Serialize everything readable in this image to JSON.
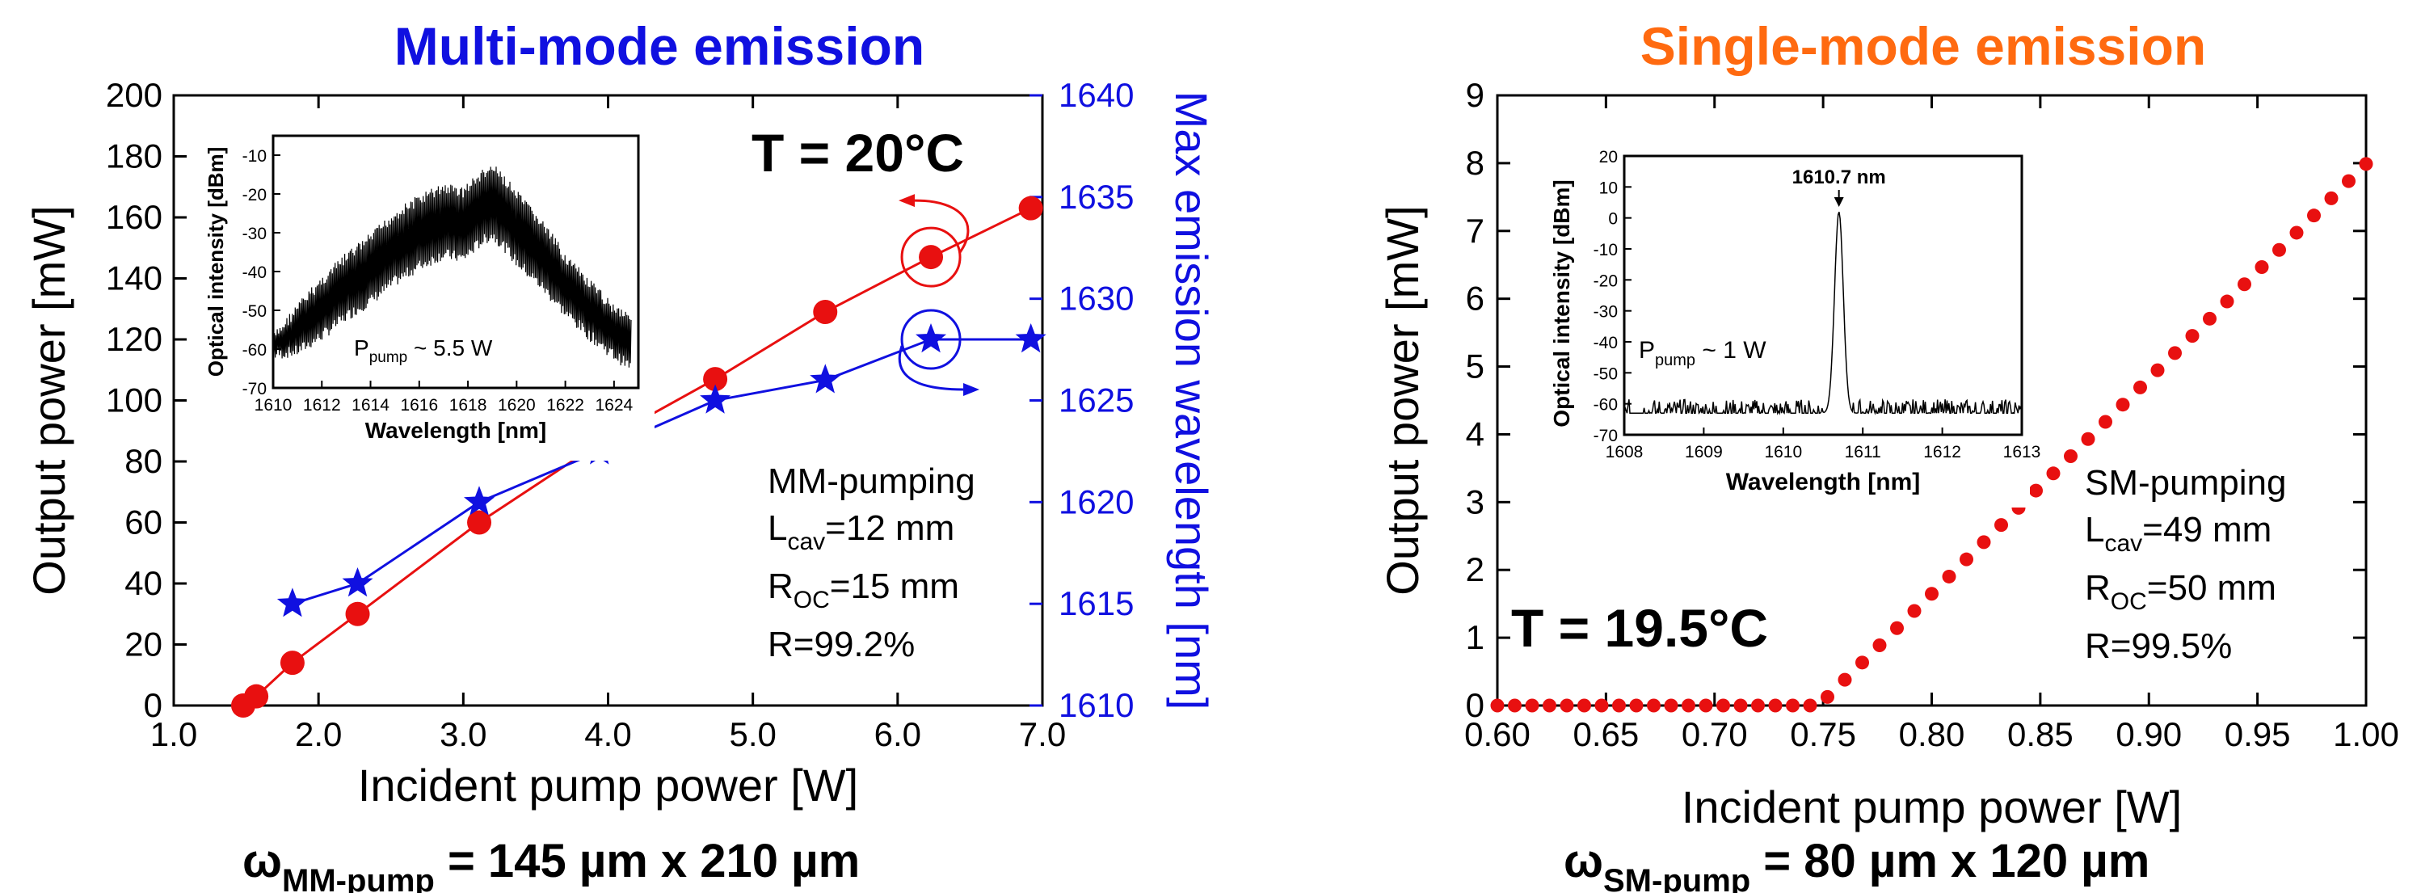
{
  "panels": {
    "left": {
      "heading": "Multi-mode emission",
      "heading_color": "#1010e0",
      "temperature": "T = 20°C",
      "params": {
        "pumping": "MM-pumping",
        "lcav_base": "L",
        "lcav_sub": "cav",
        "lcav_val": "=12 mm",
        "roc_base": "R",
        "roc_sub": "OC",
        "roc_val": "=15 mm",
        "refl": "R=99.2%"
      },
      "footer": {
        "base": "ω",
        "sub": "MM-pump",
        "rest": " = 145 µm x 210 µm"
      }
    },
    "right": {
      "heading": "Single-mode emission",
      "heading_color": "#ff6a10",
      "temperature": "T = 19.5°C",
      "params": {
        "pumping": "SM-pumping",
        "lcav_base": "L",
        "lcav_sub": "cav",
        "lcav_val": "=49 mm",
        "roc_base": "R",
        "roc_sub": "OC",
        "roc_val": "=50 mm",
        "refl": "R=99.5%"
      },
      "footer": {
        "base": "ω",
        "sub": "SM-pump",
        "rest": " = 80 µm x 120 µm"
      }
    }
  },
  "chart_data": [
    {
      "type": "line",
      "xlabel": "Incident pump power [W]",
      "ylabel": "Output power [mW]",
      "y2label": "Max emission wavelength [nm]",
      "xlim": [
        1.0,
        7.0
      ],
      "ylim": [
        0,
        200
      ],
      "y2lim": [
        1610,
        1640
      ],
      "xticks": [
        "1.0",
        "2.0",
        "3.0",
        "4.0",
        "5.0",
        "6.0",
        "7.0"
      ],
      "yticks": [
        "0",
        "20",
        "40",
        "60",
        "80",
        "100",
        "120",
        "140",
        "160",
        "180",
        "200"
      ],
      "y2ticks": [
        "1610",
        "1615",
        "1620",
        "1625",
        "1630",
        "1635",
        "1640"
      ],
      "series": [
        {
          "color": "#e81010",
          "marker": "circle",
          "axis": "left",
          "x": [
            1.48,
            1.57,
            1.82,
            2.27,
            3.11,
            3.94,
            4.74,
            5.5,
            6.23,
            6.92
          ],
          "y": [
            0,
            3,
            14,
            30,
            60,
            86,
            107,
            129,
            147,
            163
          ]
        },
        {
          "color": "#1010e0",
          "marker": "star",
          "axis": "right",
          "x": [
            1.82,
            2.27,
            3.11,
            3.94,
            4.74,
            5.5,
            6.23,
            6.92
          ],
          "y": [
            1615,
            1616,
            1620,
            1622.5,
            1625,
            1626,
            1628,
            1628
          ]
        }
      ],
      "inset": {
        "type": "line",
        "xlabel": "Wavelength [nm]",
        "ylabel": "Optical intensity [dBm]",
        "xlim": [
          1610,
          1625
        ],
        "ylim": [
          -70,
          -5
        ],
        "xticks": [
          "1610",
          "1612",
          "1614",
          "1616",
          "1618",
          "1620",
          "1622",
          "1624"
        ],
        "yticks": [
          "-70",
          "-60",
          "-50",
          "-40",
          "-30",
          "-20",
          "-10"
        ],
        "annotation": {
          "base": "P",
          "sub": "pump",
          "rest": " ~ 5.5 W"
        },
        "envelope": {
          "x": [
            1610.0,
            1611.0,
            1612.0,
            1613.0,
            1614.0,
            1615.0,
            1616.0,
            1617.0,
            1617.8,
            1618.5,
            1619.0,
            1619.5,
            1620.0,
            1621.0,
            1622.0,
            1623.0,
            1624.0,
            1624.7
          ],
          "upper": [
            -56,
            -48,
            -41,
            -35,
            -30,
            -24,
            -20,
            -17,
            -18,
            -14,
            -12,
            -15,
            -19,
            -26,
            -35,
            -42,
            -48,
            -50
          ],
          "lower": [
            -63,
            -62,
            -58,
            -53,
            -49,
            -44,
            -40,
            -37,
            -38,
            -34,
            -32,
            -35,
            -39,
            -45,
            -52,
            -58,
            -63,
            -66
          ]
        }
      }
    },
    {
      "type": "scatter",
      "xlabel": "Incident pump power [W]",
      "ylabel": "Output power [mW]",
      "xlim": [
        0.6,
        1.0
      ],
      "ylim": [
        0,
        9
      ],
      "xticks": [
        "0.60",
        "0.65",
        "0.70",
        "0.75",
        "0.80",
        "0.85",
        "0.90",
        "0.95",
        "1.00"
      ],
      "yticks": [
        "0",
        "1",
        "2",
        "3",
        "4",
        "5",
        "6",
        "7",
        "8",
        "9"
      ],
      "series": [
        {
          "color": "#e81010",
          "marker": "circle",
          "threshold_x": 0.748,
          "slope": 31.7,
          "x_start": 0.6,
          "x_end": 1.0,
          "x_step": 0.008
        }
      ],
      "inset": {
        "type": "line",
        "xlabel": "Wavelength [nm]",
        "ylabel": "Optical intensity [dBm]",
        "xlim": [
          1608,
          1613
        ],
        "ylim": [
          -70,
          20
        ],
        "xticks": [
          "1608",
          "1609",
          "1610",
          "1611",
          "1612",
          "1613"
        ],
        "yticks": [
          "-70",
          "-60",
          "-50",
          "-40",
          "-30",
          "-20",
          "-10",
          "0",
          "10",
          "20"
        ],
        "peak_label": "1610.7 nm",
        "peak": {
          "x": 1610.7,
          "y": 2
        },
        "noise_floor": -63,
        "annotation": {
          "base": "P",
          "sub": "pump",
          "rest": " ~ 1 W"
        }
      }
    }
  ]
}
